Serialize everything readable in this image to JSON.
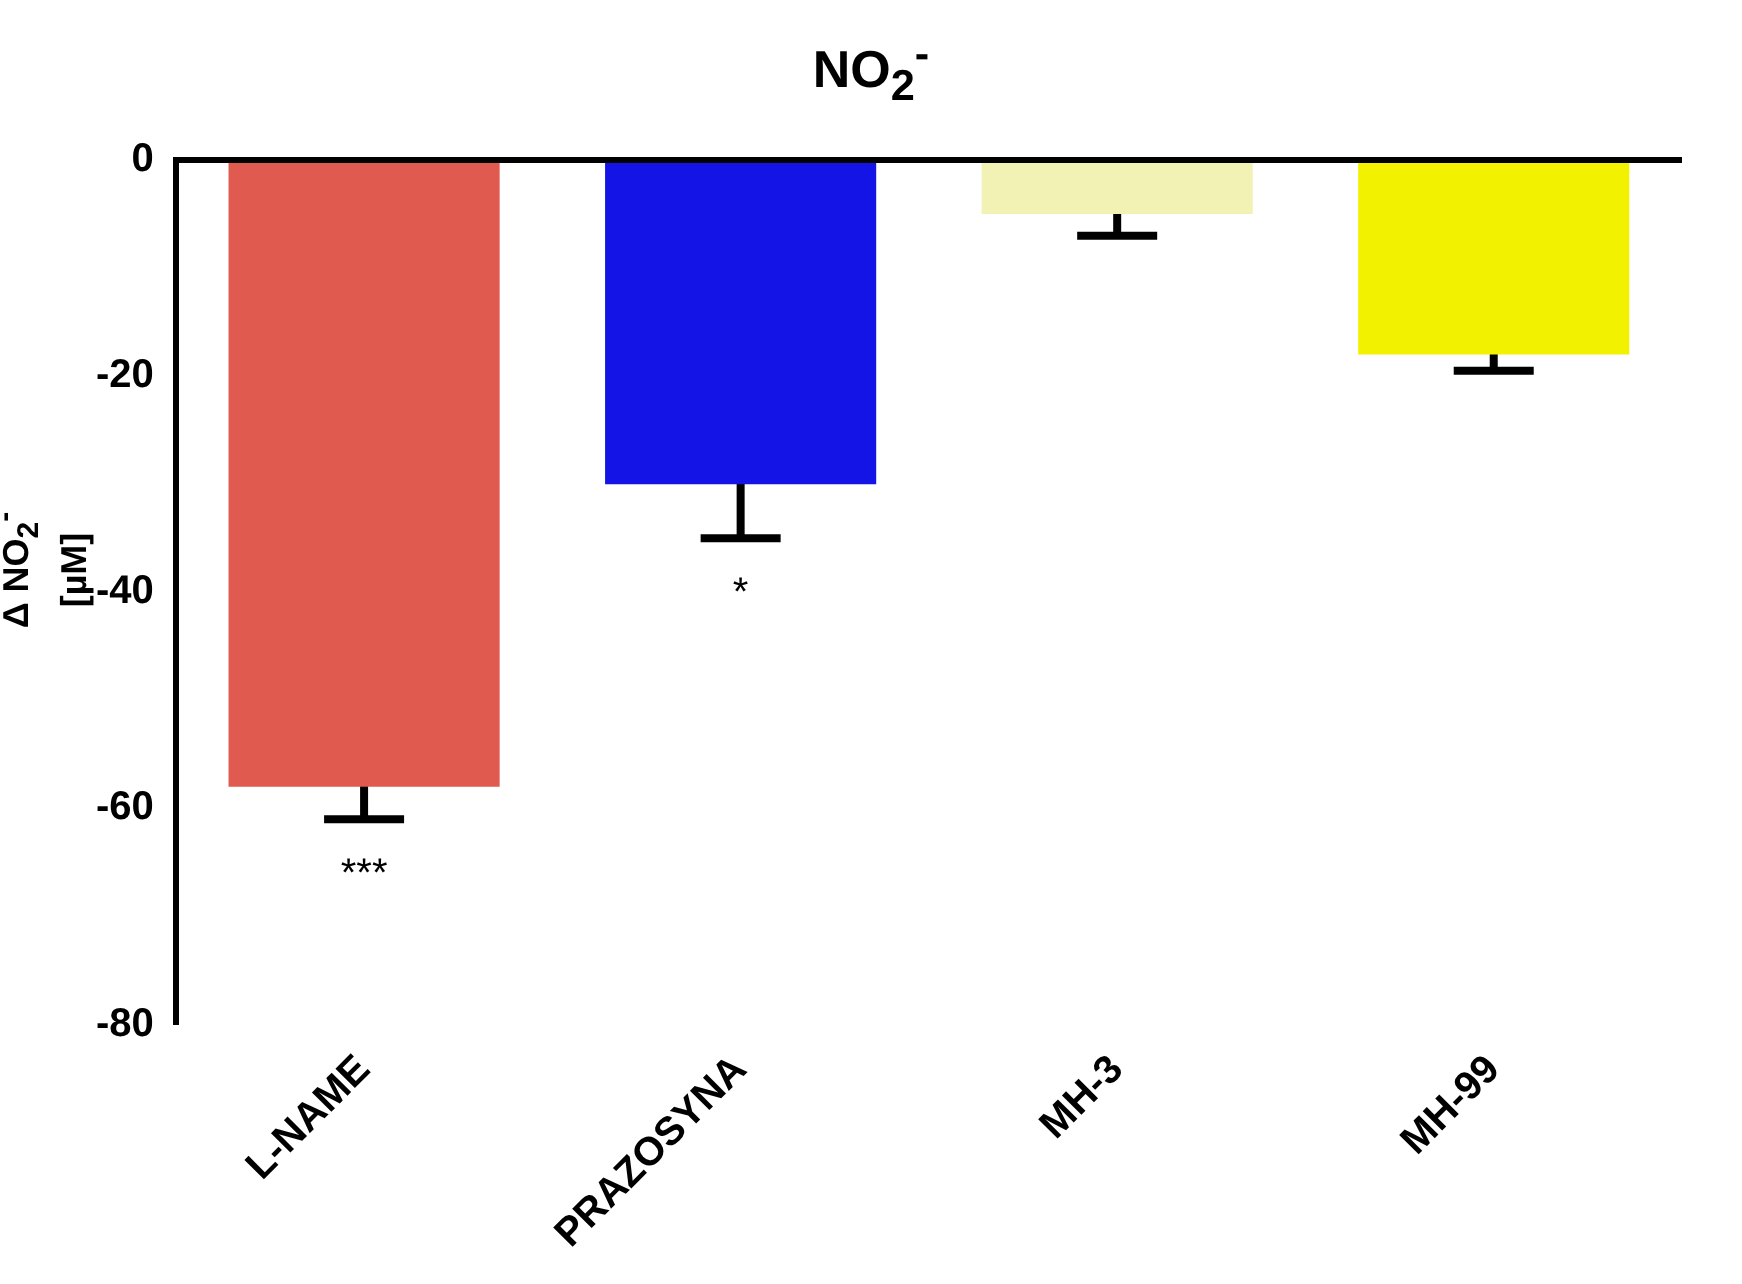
{
  "chart_data": {
    "type": "bar",
    "title": "NO$_{2}$$^{-}$",
    "ylabel": "Δ NO$_{2}$$^{-}$\n[µM]",
    "categories": [
      "L-NAME",
      "PRAZOSYNA",
      "MH-3",
      "MH-99"
    ],
    "values": [
      -58,
      -30,
      -5,
      -18
    ],
    "errors": [
      3,
      5,
      2,
      1.5
    ],
    "colors": [
      "#e05a50",
      "#1414e6",
      "#f2f2b4",
      "#f2f200"
    ],
    "ylim": [
      -80,
      0
    ],
    "yticks": [
      0,
      -20,
      -40,
      -60,
      -80
    ],
    "annotations": [
      "***",
      "*"
    ]
  }
}
